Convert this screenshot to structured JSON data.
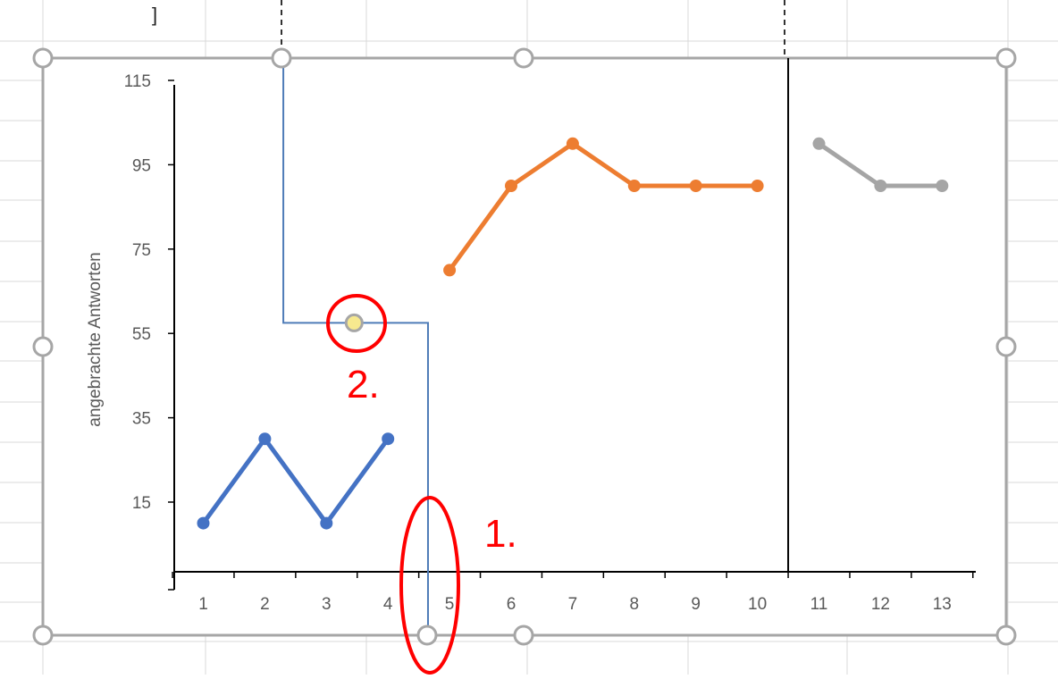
{
  "sheet": {
    "gridline_color": "#d9d9d9",
    "column_header_fragment": "]"
  },
  "chart_data": {
    "type": "line",
    "ylabel": "angebrachte Antworten",
    "xlabel": "",
    "title": "",
    "x_ticks": [
      "1",
      "2",
      "3",
      "4",
      "5",
      "6",
      "7",
      "8",
      "9",
      "10",
      "11",
      "12",
      "13"
    ],
    "y_ticks": [
      "15",
      "35",
      "55",
      "75",
      "95",
      "115"
    ],
    "ylim": [
      -1,
      115
    ],
    "xlim": [
      0.5,
      13.5
    ],
    "grid": false,
    "series": [
      {
        "color": "#4472c4",
        "x": [
          1,
          2,
          3,
          4
        ],
        "y": [
          10,
          30,
          10,
          30
        ]
      },
      {
        "color": "#ed7d31",
        "x": [
          5,
          6,
          7,
          8,
          9,
          10
        ],
        "y": [
          70,
          90,
          100,
          90,
          90,
          90
        ]
      },
      {
        "color": "#a5a5a5",
        "x": [
          11,
          12,
          13
        ],
        "y": [
          100,
          90,
          90
        ]
      }
    ],
    "phase_line_x": 10.5,
    "phase_line_color": "#000000",
    "connector_color": "#4f7cb8",
    "connector": {
      "x_top": 2.3,
      "x_bottom": 4.65,
      "y_mid": 57.5
    },
    "adjust_handle": {
      "x": 3.45,
      "y": 57.5,
      "fill": "#f7e98f"
    },
    "annotations": [
      {
        "label": "1.",
        "color": "#ff0000"
      },
      {
        "label": "2.",
        "color": "#ff0000"
      }
    ]
  }
}
